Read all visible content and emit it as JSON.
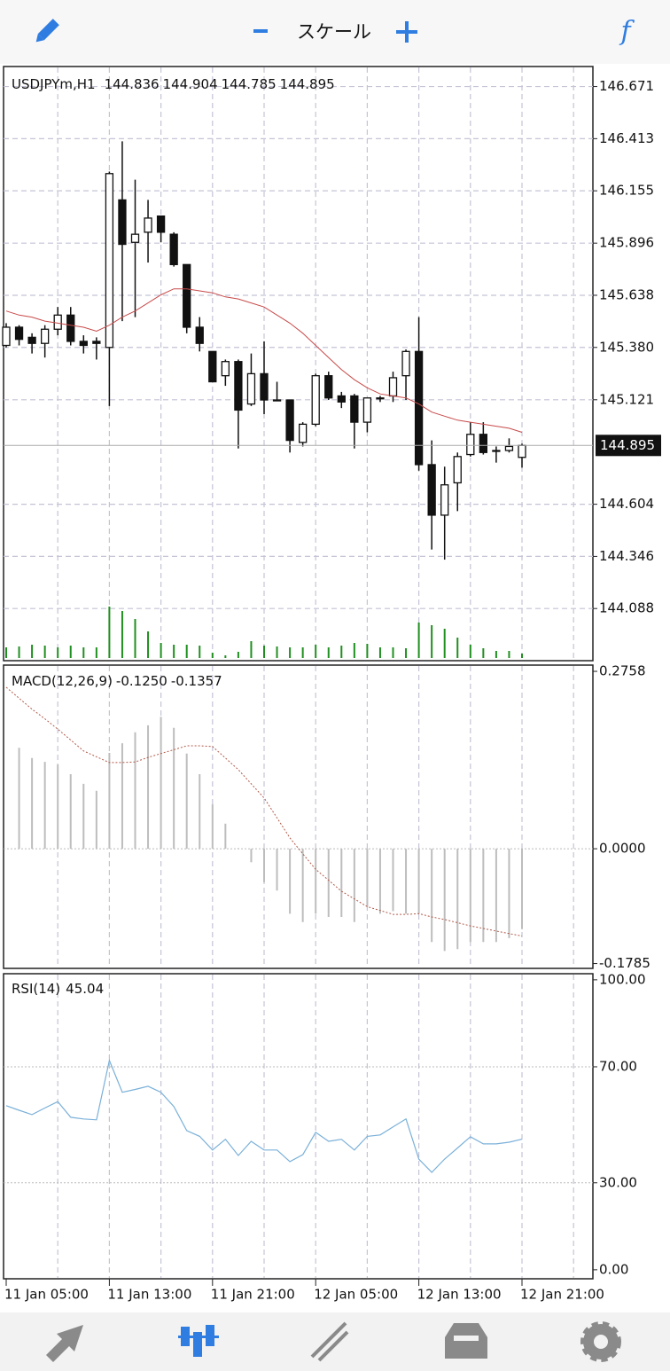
{
  "toolbar": {
    "title": "スケール",
    "function_label": "f"
  },
  "chart_data": [
    {
      "type": "candlestick",
      "symbol": "USDJPYm,H1",
      "ylim": [
        143.83,
        146.77
      ],
      "yticks": [
        {
          "value": 146.671,
          "label": "146.671"
        },
        {
          "value": 146.413,
          "label": "146.413"
        },
        {
          "value": 146.155,
          "label": "146.155"
        },
        {
          "value": 145.896,
          "label": "145.896"
        },
        {
          "value": 145.638,
          "label": "145.638"
        },
        {
          "value": 145.38,
          "label": "145.380"
        },
        {
          "value": 145.121,
          "label": "145.121"
        },
        {
          "value": 144.604,
          "label": "144.604"
        },
        {
          "value": 144.346,
          "label": "144.346"
        },
        {
          "value": 144.088,
          "label": "144.088"
        }
      ],
      "open": [
        145.39,
        145.48,
        145.43,
        145.4,
        145.47,
        145.54,
        145.41,
        145.41,
        145.38,
        146.11,
        145.9,
        145.95,
        146.03,
        145.94,
        145.79,
        145.48,
        145.36,
        145.24,
        145.31,
        145.1,
        145.25,
        145.12,
        145.12,
        144.91,
        145.0,
        145.24,
        145.14,
        145.14,
        145.01,
        145.13,
        145.14,
        145.24,
        145.36,
        144.8,
        144.55,
        144.71,
        144.85,
        144.95,
        144.87,
        144.87,
        144.836
      ],
      "high": [
        145.5,
        145.49,
        145.45,
        145.49,
        145.58,
        145.58,
        145.44,
        145.43,
        146.25,
        146.4,
        146.21,
        146.11,
        146.03,
        145.95,
        145.79,
        145.53,
        145.36,
        145.32,
        145.32,
        145.35,
        145.41,
        145.21,
        145.12,
        145.01,
        145.25,
        145.26,
        145.16,
        145.15,
        145.13,
        145.14,
        145.26,
        145.37,
        145.53,
        144.92,
        144.79,
        144.86,
        145.01,
        145.01,
        144.89,
        144.93,
        144.904
      ],
      "low": [
        145.38,
        145.39,
        145.35,
        145.33,
        145.44,
        145.39,
        145.35,
        145.32,
        145.09,
        145.51,
        145.53,
        145.8,
        145.9,
        145.78,
        145.45,
        145.36,
        145.21,
        145.19,
        144.88,
        145.09,
        145.05,
        145.12,
        144.86,
        144.89,
        144.99,
        145.12,
        145.08,
        144.88,
        144.96,
        145.11,
        145.11,
        145.12,
        144.77,
        144.38,
        144.33,
        144.57,
        144.84,
        144.85,
        144.81,
        144.86,
        144.785
      ],
      "close": [
        145.48,
        145.42,
        145.4,
        145.47,
        145.54,
        145.41,
        145.39,
        145.4,
        146.24,
        145.89,
        145.94,
        146.02,
        145.95,
        145.79,
        145.48,
        145.4,
        145.21,
        145.31,
        145.07,
        145.25,
        145.12,
        145.12,
        144.92,
        145.0,
        145.24,
        145.13,
        145.11,
        145.01,
        145.13,
        145.13,
        145.23,
        145.36,
        144.8,
        144.55,
        144.7,
        144.84,
        144.95,
        144.86,
        144.87,
        144.89,
        144.895
      ],
      "ma": {
        "color": "#c84a4a",
        "values": [
          145.56,
          145.54,
          145.53,
          145.51,
          145.5,
          145.49,
          145.48,
          145.46,
          145.49,
          145.53,
          145.56,
          145.6,
          145.64,
          145.67,
          145.67,
          145.66,
          145.65,
          145.63,
          145.62,
          145.6,
          145.58,
          145.54,
          145.5,
          145.45,
          145.39,
          145.33,
          145.27,
          145.22,
          145.18,
          145.15,
          145.14,
          145.13,
          145.1,
          145.06,
          145.04,
          145.02,
          145.01,
          145.0,
          144.99,
          144.98,
          144.96
        ]
      },
      "volume": {
        "color": "#1f8f1f",
        "vlim": [
          0,
          60
        ],
        "values": [
          12,
          13,
          15,
          14,
          12,
          14,
          12,
          12,
          58,
          53,
          44,
          30,
          17,
          15,
          15,
          14,
          6,
          3,
          7,
          19,
          14,
          13,
          12,
          12,
          15,
          12,
          14,
          17,
          16,
          12,
          12,
          11,
          40,
          37,
          33,
          23,
          15,
          11,
          8,
          8,
          5
        ]
      }
    },
    {
      "type": "macd",
      "title": "MACD(12,26,9)",
      "ylim": [
        -0.186,
        0.2855
      ],
      "yticks": [
        0.2758,
        {
          "value": 0,
          "label": "0.0000"
        },
        -0.1785
      ],
      "histogram": {
        "color": "#bdbdbd",
        "label": "-0.1250",
        "values": [
          null,
          0.157,
          0.141,
          0.135,
          0.131,
          0.116,
          0.101,
          0.09,
          0.149,
          0.164,
          0.181,
          0.192,
          0.205,
          0.188,
          0.148,
          0.116,
          0.069,
          0.039,
          0.001,
          -0.021,
          -0.052,
          -0.065,
          -0.101,
          -0.114,
          -0.101,
          -0.106,
          -0.106,
          -0.114,
          -0.09,
          -0.101,
          -0.097,
          -0.101,
          -0.101,
          -0.145,
          -0.159,
          -0.156,
          -0.145,
          -0.145,
          -0.145,
          -0.139,
          -0.125
        ]
      },
      "signal": {
        "color": "#b05a4a",
        "label": "-0.1357",
        "values": [
          0.251,
          0.234,
          0.217,
          0.202,
          0.186,
          0.169,
          0.152,
          0.143,
          0.134,
          0.134,
          0.135,
          0.142,
          0.148,
          0.154,
          0.16,
          0.16,
          0.159,
          0.141,
          0.123,
          0.101,
          0.079,
          0.048,
          0.017,
          -0.008,
          -0.032,
          -0.049,
          -0.066,
          -0.078,
          -0.09,
          -0.096,
          -0.102,
          -0.102,
          -0.101,
          -0.106,
          -0.11,
          -0.115,
          -0.12,
          -0.124,
          -0.128,
          -0.132,
          -0.1357
        ]
      }
    },
    {
      "type": "line",
      "title": "RSI(14)",
      "color": "#7ab0d8",
      "ylim": [
        -3.1,
        102.1
      ],
      "yticks": [
        {
          "value": 100,
          "label": "100.00"
        },
        {
          "value": 70,
          "label": "70.00"
        },
        {
          "value": 30,
          "label": "30.00"
        },
        {
          "value": 0,
          "label": "0.00"
        }
      ],
      "levels": [
        70,
        30
      ],
      "categories": [
        "11 Jan 05:00",
        null,
        null,
        null,
        null,
        null,
        null,
        null,
        "11 Jan 13:00",
        null,
        null,
        null,
        null,
        null,
        null,
        null,
        "11 Jan 21:00",
        null,
        null,
        null,
        null,
        null,
        null,
        null,
        "12 Jan 05:00",
        null,
        null,
        null,
        null,
        null,
        null,
        null,
        "12 Jan 13:00",
        null,
        null,
        null,
        null,
        null,
        null,
        null,
        "12 Jan 21:00"
      ],
      "values": [
        56.6,
        55,
        53.5,
        55.8,
        58,
        52.6,
        52,
        51.7,
        72.2,
        61.2,
        62.2,
        63.3,
        61.2,
        56.3,
        48,
        46,
        41.3,
        45,
        39.4,
        44.3,
        41.3,
        41.3,
        37.3,
        39.7,
        47.4,
        44.3,
        45,
        41.3,
        46,
        46.5,
        49.3,
        52,
        38.2,
        33.6,
        38.2,
        42,
        45.9,
        43.4,
        43.4,
        44,
        45.04
      ]
    }
  ]
}
